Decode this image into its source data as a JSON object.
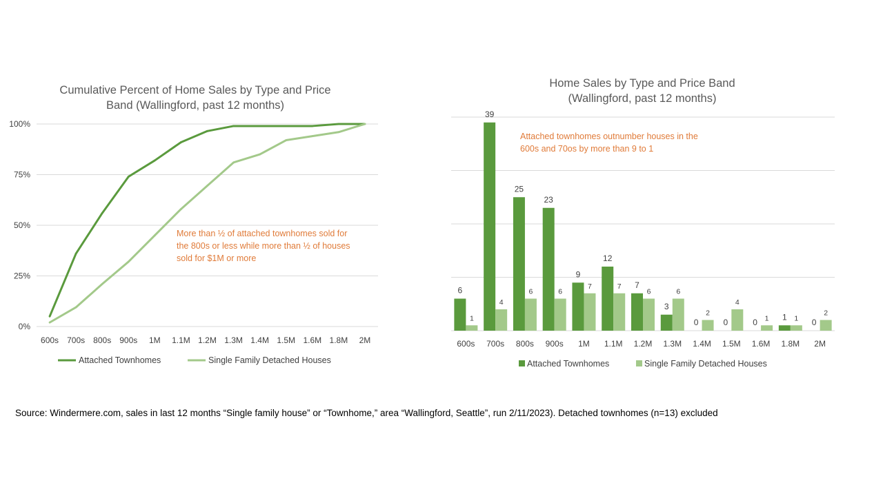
{
  "colors": {
    "attached": "#5a9a3d",
    "detached": "#a3c98a",
    "note": "#e07b39",
    "grid": "#d9d9d9",
    "text": "#404040"
  },
  "source_note": "Source:  Windermere.com,  sales in last 12 months  “Single family house”  or  “Townhome,”  area “Wallingford, Seattle”, run 2/11/2023).  Detached townhomes  (n=13)  excluded",
  "chart_data": [
    {
      "type": "line",
      "title_lines": [
        "Cumulative Percent of Home Sales by Type and Price",
        "Band (Wallingford, past 12 months)"
      ],
      "categories": [
        "600s",
        "700s",
        "800s",
        "900s",
        "1M",
        "1.1M",
        "1.2M",
        "1.3M",
        "1.4M",
        "1.5M",
        "1.6M",
        "1.8M",
        "2M"
      ],
      "y_ticks": [
        "0%",
        "25%",
        "50%",
        "75%",
        "100%"
      ],
      "ylim": [
        0,
        100
      ],
      "series": [
        {
          "name": "Attached Townhomes",
          "color": "#5a9a3d",
          "values": [
            5,
            36,
            56,
            74,
            82,
            91,
            96.5,
            99,
            99,
            99,
            99,
            100,
            100
          ]
        },
        {
          "name": "Single Family Detached Houses",
          "color": "#a3c98a",
          "values": [
            2,
            9.5,
            21,
            32,
            45,
            58,
            69.5,
            81,
            85,
            92,
            94,
            96,
            100
          ]
        }
      ],
      "annotation_lines": [
        "More than ½ of attached townhomes sold for",
        "the 800s  or less while more than ½ of houses",
        "sold for $1M  or more"
      ],
      "legend_position": "bottom"
    },
    {
      "type": "bar",
      "title_lines": [
        "Home Sales by Type and Price Band",
        "(Wallingford, past 12 months)"
      ],
      "categories": [
        "600s",
        "700s",
        "800s",
        "900s",
        "1M",
        "1.1M",
        "1.2M",
        "1.3M",
        "1.4M",
        "1.5M",
        "1.6M",
        "1.8M",
        "2M"
      ],
      "ylim": [
        0,
        40
      ],
      "grid_values": [
        0,
        10,
        20,
        30,
        40
      ],
      "series": [
        {
          "name": "Attached Townhomes",
          "color": "#5a9a3d",
          "values": [
            6,
            39,
            25,
            23,
            9,
            12,
            7,
            3,
            0,
            0,
            0,
            1,
            0
          ]
        },
        {
          "name": "Single Family Detached Houses",
          "color": "#a3c98a",
          "values": [
            1,
            4,
            6,
            6,
            7,
            7,
            6,
            6,
            2,
            4,
            1,
            1,
            2
          ]
        }
      ],
      "annotation_lines": [
        "Attached townhomes outnumber houses in the",
        "600s and 70os by more than 9 to 1"
      ],
      "legend_position": "bottom"
    }
  ]
}
